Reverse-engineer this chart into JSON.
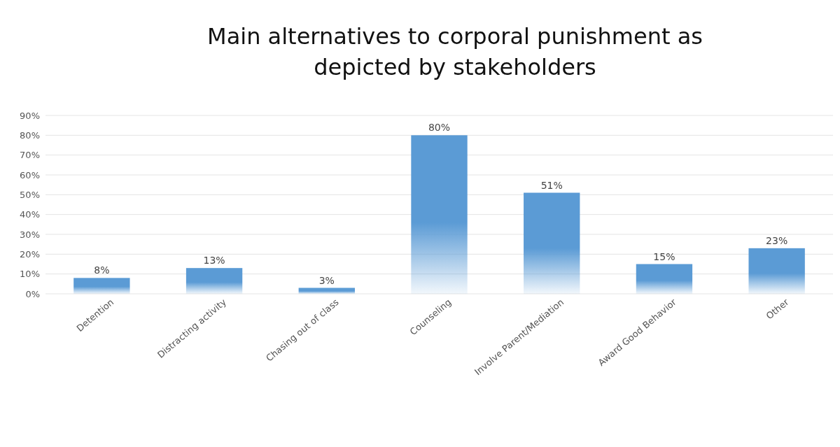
{
  "chart_data": {
    "type": "bar",
    "title": "Main alternatives to corporal punishment as depicted by stakeholders",
    "categories": [
      "Detention",
      "Distracting activity",
      "Chasing out of class",
      "Counseling",
      "Involve Parent/Mediation",
      "Award Good Behavior",
      "Other"
    ],
    "values": [
      8,
      13,
      3,
      80,
      51,
      15,
      23
    ],
    "value_labels": [
      "8%",
      "13%",
      "3%",
      "80%",
      "51%",
      "15%",
      "23%"
    ],
    "color": "#5b9bd5",
    "ylim": [
      0,
      90
    ],
    "yticks": [
      {
        "value": 0,
        "label": "0%"
      },
      {
        "value": 10,
        "label": "10%"
      },
      {
        "value": 20,
        "label": "20%"
      },
      {
        "value": 30,
        "label": "30%"
      },
      {
        "value": 40,
        "label": "40%"
      },
      {
        "value": 50,
        "label": "50%"
      },
      {
        "value": 60,
        "label": "60%"
      },
      {
        "value": 70,
        "label": "70%"
      },
      {
        "value": 80,
        "label": "80%"
      },
      {
        "value": 90,
        "label": "90%"
      }
    ],
    "grid": "y"
  }
}
